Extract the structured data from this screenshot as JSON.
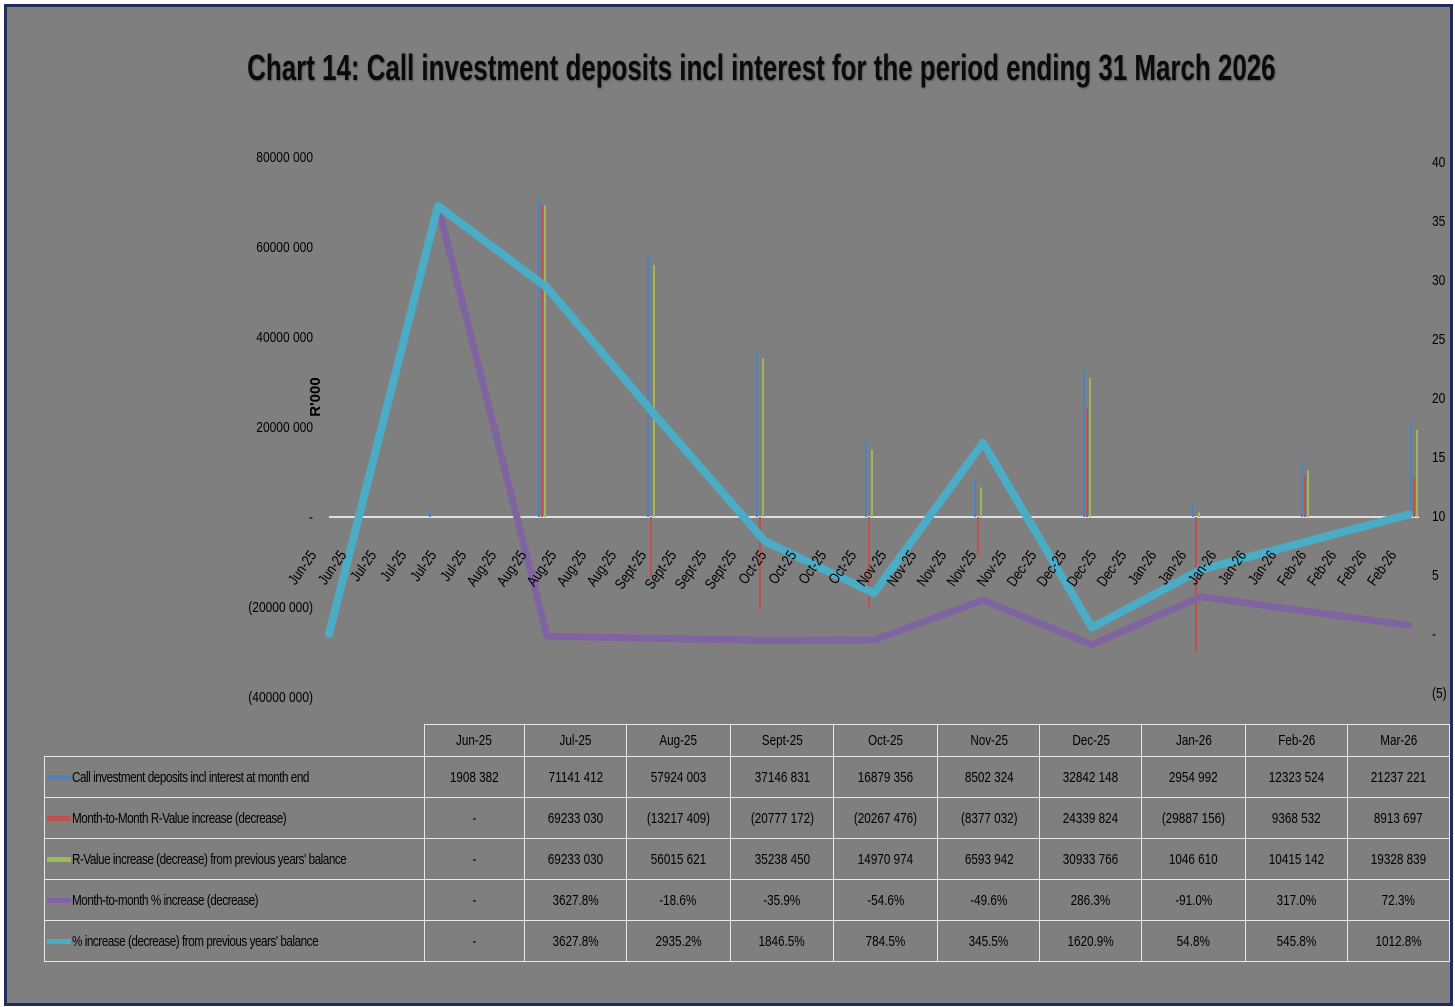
{
  "chart_data": {
    "type": "bar+line",
    "title": "Chart 14: Call investment deposits incl interest for the period ending 31 March 2026",
    "ylabel": "R'000",
    "y_left": {
      "range": [
        -40000000,
        80000000
      ],
      "tick_labels": [
        "80000 000",
        "60000 000",
        "40000 000",
        "20000 000",
        "-",
        "(20000 000)",
        "(40000 000)"
      ]
    },
    "y_right": {
      "range": [
        -5,
        40
      ],
      "tick_labels": [
        "40",
        "35",
        "30",
        "25",
        "20",
        "15",
        "10",
        "5",
        "-",
        "(5)"
      ]
    },
    "axis_date_labels": [
      "Jun-25",
      "Jun-25",
      "Jul-25",
      "Jul-25",
      "Jul-25",
      "Jul-25",
      "Aug-25",
      "Aug-25",
      "Aug-25",
      "Aug-25",
      "Aug-25",
      "Sept-25",
      "Sept-25",
      "Sept-25",
      "Sept-25",
      "Oct-25",
      "Oct-25",
      "Oct-25",
      "Oct-25",
      "Nov-25",
      "Nov-25",
      "Nov-25",
      "Nov-25",
      "Nov-25",
      "Dec-25",
      "Dec-25",
      "Dec-25",
      "Dec-25",
      "Jan-26",
      "Jan-26",
      "Jan-26",
      "Jan-26",
      "Jan-26",
      "Feb-26",
      "Feb-26",
      "Feb-26",
      "Feb-26"
    ],
    "categories": [
      "Jun-25",
      "Jul-25",
      "Aug-25",
      "Sept-25",
      "Oct-25",
      "Nov-25",
      "Dec-25",
      "Jan-26",
      "Feb-26",
      "Mar-26"
    ],
    "series": [
      {
        "name": "Call investment deposits incl interest at month end",
        "kind": "bar",
        "axis": "left",
        "color": "#4f81bd",
        "values": [
          1908382,
          71141412,
          57924003,
          37146831,
          16879356,
          8502324,
          32842148,
          2954992,
          12323524,
          21237221
        ],
        "labels": [
          "1908 382",
          "71141 412",
          "57924 003",
          "37146 831",
          "16879 356",
          "8502 324",
          "32842 148",
          "2954 992",
          "12323 524",
          "21237 221"
        ]
      },
      {
        "name": "Month-to-Month R-Value increase (decrease)",
        "kind": "bar",
        "axis": "left",
        "color": "#c0504d",
        "values": [
          null,
          69233030,
          -13217409,
          -20777172,
          -20267476,
          -8377032,
          24339824,
          -29887156,
          9368532,
          8913697
        ],
        "labels": [
          "-",
          "69233 030",
          "(13217 409)",
          "(20777 172)",
          "(20267 476)",
          "(8377 032)",
          "24339 824",
          "(29887 156)",
          "9368 532",
          "8913 697"
        ]
      },
      {
        "name": "R-Value increase (decrease) from previous years' balance",
        "kind": "bar",
        "axis": "left",
        "color": "#9bbb59",
        "values": [
          null,
          69233030,
          56015621,
          35238450,
          14970974,
          6593942,
          30933766,
          1046610,
          10415142,
          19328839
        ],
        "labels": [
          "-",
          "69233 030",
          "56015 621",
          "35238 450",
          "14970 974",
          "6593 942",
          "30933 766",
          "1046 610",
          "10415 142",
          "19328 839"
        ]
      },
      {
        "name": "Month-to-month % increase (decrease)",
        "kind": "line",
        "axis": "right",
        "color": "#8064a2",
        "values": [
          null,
          36.278,
          -0.186,
          -0.359,
          -0.546,
          -0.496,
          2.863,
          -0.91,
          3.17,
          0.723
        ],
        "labels": [
          "-",
          "3627.8%",
          "-18.6%",
          "-35.9%",
          "-54.6%",
          "-49.6%",
          "286.3%",
          "-91.0%",
          "317.0%",
          "72.3%"
        ]
      },
      {
        "name": "% increase (decrease) from previous years' balance",
        "kind": "line",
        "axis": "right",
        "color": "#4bacc6",
        "values": [
          null,
          36.278,
          29.352,
          18.465,
          7.845,
          3.455,
          16.209,
          0.548,
          5.458,
          10.128
        ],
        "labels": [
          "-",
          "3627.8%",
          "2935.2%",
          "1846.5%",
          "784.5%",
          "345.5%",
          "1620.9%",
          "54.8%",
          "545.8%",
          "1012.8%"
        ]
      }
    ]
  }
}
